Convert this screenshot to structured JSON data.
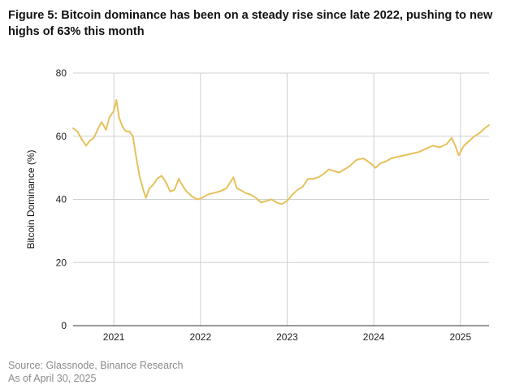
{
  "title": "Figure 5: Bitcoin dominance has been on a steady rise since late 2022, pushing to new highs of 63% this month",
  "source_line1": "Source: Glassnode, Binance Research",
  "source_line2": "As of April 30, 2025",
  "chart_data": {
    "type": "line",
    "title": "",
    "xlabel": "",
    "ylabel": "Bitcoin Dominance (%)",
    "xlim": [
      2020.53,
      2025.33
    ],
    "ylim": [
      0,
      80
    ],
    "grid": true,
    "x_ticks": [
      "2021",
      "2022",
      "2023",
      "2024",
      "2025"
    ],
    "y_ticks": [
      "0",
      "20",
      "40",
      "60",
      "80"
    ],
    "series": [
      {
        "color": "#e6c15c",
        "x": [
          2020.53,
          2020.58,
          2020.63,
          2020.68,
          2020.72,
          2020.77,
          2020.82,
          2020.86,
          2020.91,
          2020.95,
          2021.0,
          2021.03,
          2021.06,
          2021.1,
          2021.14,
          2021.18,
          2021.22,
          2021.26,
          2021.3,
          2021.34,
          2021.37,
          2021.41,
          2021.45,
          2021.5,
          2021.55,
          2021.6,
          2021.65,
          2021.7,
          2021.75,
          2021.8,
          2021.84,
          2021.9,
          2021.96,
          2022.02,
          2022.08,
          2022.15,
          2022.22,
          2022.3,
          2022.38,
          2022.42,
          2022.46,
          2022.52,
          2022.58,
          2022.64,
          2022.7,
          2022.76,
          2022.82,
          2022.88,
          2022.94,
          2023.0,
          2023.06,
          2023.12,
          2023.18,
          2023.24,
          2023.3,
          2023.36,
          2023.42,
          2023.48,
          2023.54,
          2023.6,
          2023.66,
          2023.72,
          2023.8,
          2023.88,
          2023.96,
          2024.02,
          2024.08,
          2024.14,
          2024.2,
          2024.28,
          2024.36,
          2024.44,
          2024.52,
          2024.6,
          2024.68,
          2024.76,
          2024.84,
          2024.9,
          2024.94,
          2024.98,
          2025.04,
          2025.1,
          2025.16,
          2025.22,
          2025.28,
          2025.33
        ],
        "y": [
          62.5,
          61.5,
          59.0,
          57.0,
          58.5,
          59.5,
          62.5,
          64.5,
          62.0,
          66.0,
          68.0,
          71.5,
          66.0,
          63.0,
          61.5,
          61.5,
          60.0,
          53.0,
          47.0,
          43.0,
          40.5,
          43.5,
          44.5,
          46.5,
          47.5,
          45.5,
          42.5,
          43.0,
          46.5,
          44.0,
          42.5,
          41.0,
          40.0,
          40.5,
          41.5,
          42.0,
          42.5,
          43.5,
          47.0,
          43.5,
          43.0,
          42.0,
          41.5,
          40.5,
          39.0,
          39.5,
          40.0,
          39.0,
          38.5,
          39.5,
          41.5,
          43.0,
          44.0,
          46.5,
          46.5,
          47.0,
          48.0,
          49.5,
          49.0,
          48.5,
          49.5,
          50.5,
          52.5,
          53.0,
          51.5,
          50.0,
          51.5,
          52.0,
          53.0,
          53.5,
          54.0,
          54.5,
          55.0,
          56.0,
          57.0,
          56.5,
          57.5,
          59.5,
          57.0,
          54.0,
          57.0,
          58.5,
          60.0,
          61.0,
          62.5,
          63.5
        ]
      }
    ]
  }
}
